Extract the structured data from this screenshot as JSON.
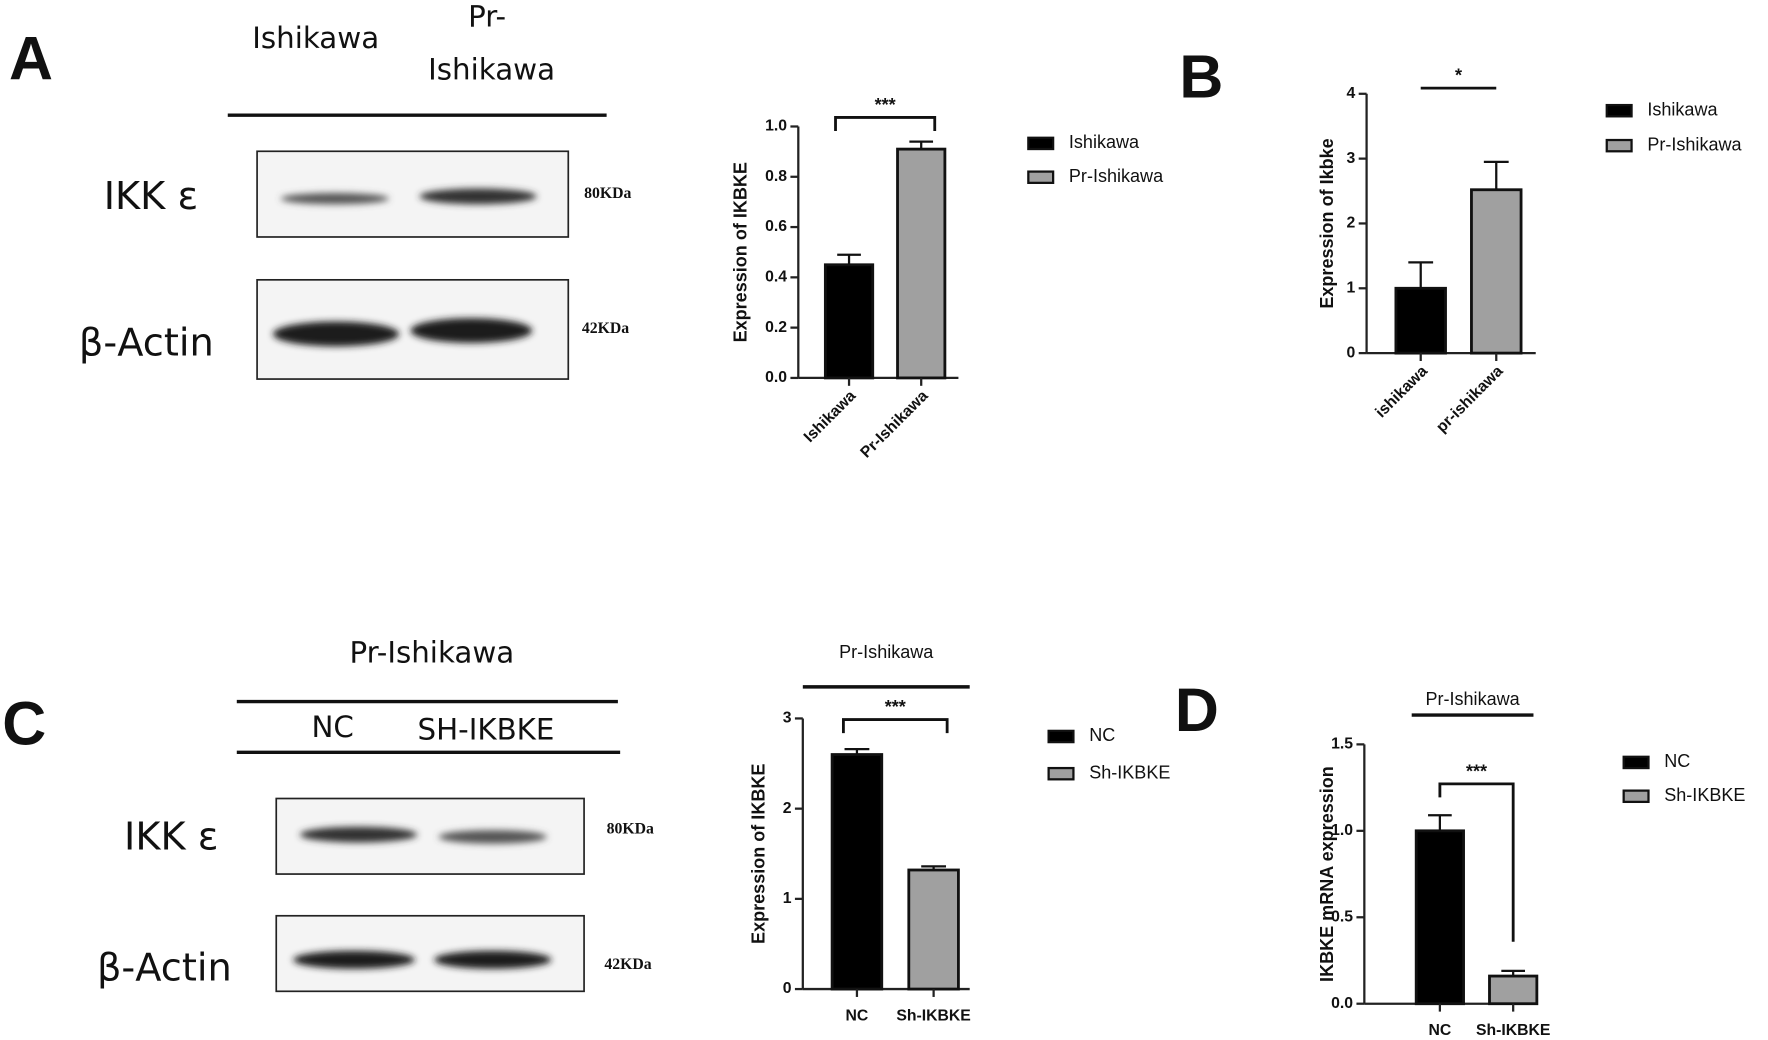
{
  "panels": {
    "a": "A",
    "b": "B",
    "c": "C",
    "d": "D"
  },
  "blots": [
    {
      "lanes": [
        [
          "Ishikawa"
        ],
        [
          "Pr-",
          "Ishikawa"
        ]
      ],
      "rows": [
        {
          "label": "IKK ε",
          "size": "80KDa"
        },
        {
          "label": "β-Actin",
          "size": "42KDa"
        }
      ]
    },
    {
      "header": "Pr-Ishikawa",
      "lanes": [
        [
          "NC"
        ],
        [
          "SH-IKBKE"
        ]
      ],
      "rows": [
        {
          "label": "IKK ε",
          "size": "80KDa"
        },
        {
          "label": "β-Actin",
          "size": "42KDa"
        }
      ]
    }
  ],
  "chart_data": [
    {
      "type": "bar",
      "ylabel": "Expression of IKBKE",
      "categories": [
        "Ishikawa",
        "Pr-Ishikawa"
      ],
      "values": [
        0.45,
        0.91
      ],
      "errors": [
        0.04,
        0.03
      ],
      "colors": [
        "#000000",
        "#a0a0a0"
      ],
      "legend": [
        "Ishikawa",
        "Pr-Ishikawa"
      ],
      "annotation": "***",
      "ylim": [
        0,
        1.0
      ],
      "yticks": [
        {
          "value": 0,
          "label": "0.0"
        },
        0.2,
        0.4,
        0.6,
        0.8,
        {
          "value": 1,
          "label": "1.0"
        }
      ]
    },
    {
      "type": "bar",
      "ylabel": "Expression of Ikbke",
      "categories": [
        "ishikawa",
        "pr-ishikawa"
      ],
      "values": [
        1.0,
        2.52
      ],
      "errors": [
        0.4,
        0.43
      ],
      "colors": [
        "#000000",
        "#a0a0a0"
      ],
      "legend": [
        "Ishikawa",
        "Pr-Ishikawa"
      ],
      "annotation": "*",
      "ylim": [
        0,
        4
      ],
      "yticks": [
        0,
        1,
        2,
        3,
        4
      ]
    },
    {
      "type": "bar",
      "title": "Pr-Ishikawa",
      "ylabel": "Expression of IKBKE",
      "categories": [
        "NC",
        "Sh-IKBKE"
      ],
      "values": [
        2.6,
        1.32
      ],
      "errors": [
        0.06,
        0.04
      ],
      "colors": [
        "#000000",
        "#a0a0a0"
      ],
      "legend": [
        "NC",
        "Sh-IKBKE"
      ],
      "annotation": "***",
      "ylim": [
        0,
        3
      ],
      "yticks": [
        0,
        1,
        2,
        3
      ]
    },
    {
      "type": "bar",
      "title": "Pr-Ishikawa",
      "ylabel": "IKBKE mRNA expression",
      "categories": [
        "NC",
        "Sh-IKBKE"
      ],
      "values": [
        1.0,
        0.16
      ],
      "errors": [
        0.09,
        0.03
      ],
      "colors": [
        "#000000",
        "#a0a0a0"
      ],
      "legend": [
        "NC",
        "Sh-IKBKE"
      ],
      "annotation": "***",
      "ylim": [
        0,
        1.5
      ],
      "yticks": [
        {
          "value": 0,
          "label": "0.0"
        },
        0.5,
        {
          "value": 1,
          "label": "1.0"
        },
        1.5
      ]
    }
  ]
}
